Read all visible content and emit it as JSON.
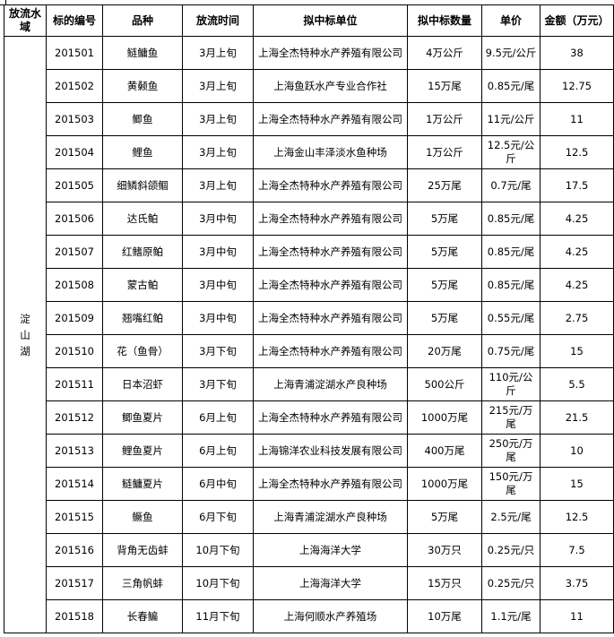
{
  "headers": [
    "放流水域",
    "标的编号",
    "品种",
    "放流时间",
    "拟中标单位",
    "拟中标数量",
    "单价",
    "金额（万元）"
  ],
  "region": [
    "淀",
    "山",
    "湖"
  ],
  "rows": [
    {
      "id": "201501",
      "species": "鲢鳙鱼",
      "time": "3月上旬",
      "unit": "上海全杰特种水产养殖有限公司",
      "qty": "4万公斤",
      "price": "9.5元/公斤",
      "amount": "38"
    },
    {
      "id": "201502",
      "species": "黄颡鱼",
      "time": "3月上旬",
      "unit": "上海鱼跃水产专业合作社",
      "qty": "15万尾",
      "price": "0.85元/尾",
      "amount": "12.75"
    },
    {
      "id": "201503",
      "species": "鲫鱼",
      "time": "3月上旬",
      "unit": "上海全杰特种水产养殖有限公司",
      "qty": "1万公斤",
      "price": "11元/公斤",
      "amount": "11"
    },
    {
      "id": "201504",
      "species": "鲤鱼",
      "time": "3月上旬",
      "unit": "上海金山丰泽淡水鱼种场",
      "qty": "1万公斤",
      "price": "12.5元/公斤",
      "amount": "12.5"
    },
    {
      "id": "201505",
      "species": "细鳞斜颌鲴",
      "time": "3月上旬",
      "unit": "上海全杰特种水产养殖有限公司",
      "qty": "25万尾",
      "price": "0.7元/尾",
      "amount": "17.5"
    },
    {
      "id": "201506",
      "species": "达氏鲌",
      "time": "3月中旬",
      "unit": "上海全杰特种水产养殖有限公司",
      "qty": "5万尾",
      "price": "0.85元/尾",
      "amount": "4.25"
    },
    {
      "id": "201507",
      "species": "红鳍原鲌",
      "time": "3月中旬",
      "unit": "上海全杰特种水产养殖有限公司",
      "qty": "5万尾",
      "price": "0.85元/尾",
      "amount": "4.25"
    },
    {
      "id": "201508",
      "species": "蒙古鲌",
      "time": "3月中旬",
      "unit": "上海全杰特种水产养殖有限公司",
      "qty": "5万尾",
      "price": "0.85元/尾",
      "amount": "4.25"
    },
    {
      "id": "201509",
      "species": "翘嘴红鲌",
      "time": "3月中旬",
      "unit": "上海全杰特种水产养殖有限公司",
      "qty": "5万尾",
      "price": "0.55元/尾",
      "amount": "2.75"
    },
    {
      "id": "201510",
      "species": "花（鱼骨）",
      "time": "3月下旬",
      "unit": "上海全杰特种水产养殖有限公司",
      "qty": "20万尾",
      "price": "0.75元/尾",
      "amount": "15"
    },
    {
      "id": "201511",
      "species": "日本沼虾",
      "time": "3月下旬",
      "unit": "上海青浦淀湖水产良种场",
      "qty": "500公斤",
      "price": "110元/公斤",
      "amount": "5.5"
    },
    {
      "id": "201512",
      "species": "鲫鱼夏片",
      "time": "6月上旬",
      "unit": "上海全杰特种水产养殖有限公司",
      "qty": "1000万尾",
      "price": "215元/万尾",
      "amount": "21.5"
    },
    {
      "id": "201513",
      "species": "鲤鱼夏片",
      "time": "6月上旬",
      "unit": "上海锦洋农业科技发展有限公司",
      "qty": "400万尾",
      "price": "250元/万尾",
      "amount": "10"
    },
    {
      "id": "201514",
      "species": "鲢鳙夏片",
      "time": "6月中旬",
      "unit": "上海全杰特种水产养殖有限公司",
      "qty": "1000万尾",
      "price": "150元/万尾",
      "amount": "15"
    },
    {
      "id": "201515",
      "species": "鳜鱼",
      "time": "6月下旬",
      "unit": "上海青浦淀湖水产良种场",
      "qty": "5万尾",
      "price": "2.5元/尾",
      "amount": "12.5"
    },
    {
      "id": "201516",
      "species": "背角无齿蚌",
      "time": "10月下旬",
      "unit": "上海海洋大学",
      "qty": "30万只",
      "price": "0.25元/只",
      "amount": "7.5"
    },
    {
      "id": "201517",
      "species": "三角帆蚌",
      "time": "10月下旬",
      "unit": "上海海洋大学",
      "qty": "15万只",
      "price": "0.25元/只",
      "amount": "3.75"
    },
    {
      "id": "201518",
      "species": "长春鳊",
      "time": "11月下旬",
      "unit": "上海何顺水产养殖场",
      "qty": "10万尾",
      "price": "1.1元/尾",
      "amount": "11"
    }
  ]
}
